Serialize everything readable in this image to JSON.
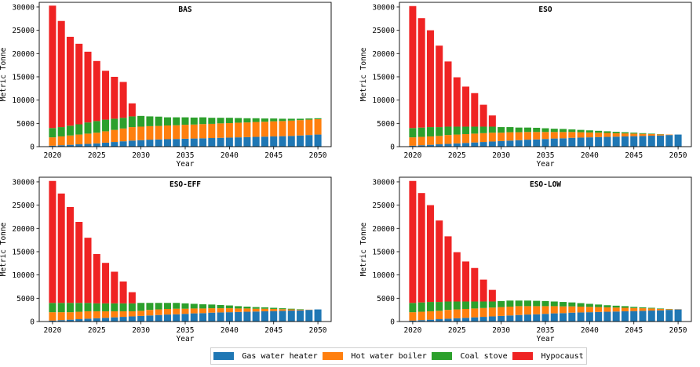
{
  "colors": {
    "gas": "#1f77b4",
    "hot": "#ff7f0e",
    "coal": "#2ca02c",
    "hypo": "#ef2323"
  },
  "chart_data": [
    {
      "type": "bar",
      "stacked": true,
      "title": "BAS",
      "xlabel": "Year",
      "ylabel": "Metric Tonne",
      "ylim": [
        0,
        31000
      ],
      "xticks": [
        2020,
        2025,
        2030,
        2035,
        2040,
        2045,
        2050
      ],
      "yticks": [
        0,
        5000,
        10000,
        15000,
        20000,
        25000,
        30000
      ],
      "x": [
        2020,
        2021,
        2022,
        2023,
        2024,
        2025,
        2026,
        2027,
        2028,
        2029,
        2030,
        2031,
        2032,
        2033,
        2034,
        2035,
        2036,
        2037,
        2038,
        2039,
        2040,
        2041,
        2042,
        2043,
        2044,
        2045,
        2046,
        2047,
        2048,
        2049,
        2050
      ],
      "series": [
        {
          "name": "Gas water heater",
          "values": [
            200,
            300,
            400,
            500,
            600,
            700,
            850,
            1000,
            1150,
            1300,
            1400,
            1500,
            1550,
            1600,
            1650,
            1700,
            1750,
            1800,
            1850,
            1900,
            1950,
            2000,
            2050,
            2100,
            2150,
            2200,
            2250,
            2300,
            2400,
            2500,
            2600
          ]
        },
        {
          "name": "Hot water boiler",
          "values": [
            1800,
            1900,
            2000,
            2100,
            2200,
            2300,
            2450,
            2600,
            2750,
            2900,
            2900,
            2900,
            2900,
            2950,
            2950,
            3000,
            3000,
            3050,
            3050,
            3100,
            3100,
            3150,
            3150,
            3200,
            3200,
            3250,
            3250,
            3300,
            3300,
            3300,
            3300
          ]
        },
        {
          "name": "Coal stove",
          "values": [
            2000,
            2000,
            2100,
            2200,
            2400,
            2500,
            2500,
            2400,
            2300,
            2300,
            2300,
            2100,
            2000,
            1750,
            1700,
            1600,
            1500,
            1450,
            1300,
            1200,
            1150,
            1000,
            900,
            800,
            700,
            600,
            500,
            400,
            300,
            250,
            200
          ]
        },
        {
          "name": "Hypocaust",
          "values": [
            26300,
            22800,
            19100,
            17300,
            15200,
            12900,
            10500,
            9000,
            7700,
            2800,
            0,
            0,
            0,
            0,
            0,
            0,
            0,
            0,
            0,
            0,
            0,
            0,
            0,
            0,
            0,
            0,
            0,
            0,
            0,
            0,
            0
          ]
        }
      ]
    },
    {
      "type": "bar",
      "stacked": true,
      "title": "ESO",
      "xlabel": "Year",
      "ylabel": "Metric Tonne",
      "ylim": [
        0,
        31000
      ],
      "xticks": [
        2020,
        2025,
        2030,
        2035,
        2040,
        2045,
        2050
      ],
      "yticks": [
        0,
        5000,
        10000,
        15000,
        20000,
        25000,
        30000
      ],
      "x": [
        2020,
        2021,
        2022,
        2023,
        2024,
        2025,
        2026,
        2027,
        2028,
        2029,
        2030,
        2031,
        2032,
        2033,
        2034,
        2035,
        2036,
        2037,
        2038,
        2039,
        2040,
        2041,
        2042,
        2043,
        2044,
        2045,
        2046,
        2047,
        2048,
        2049,
        2050
      ],
      "series": [
        {
          "name": "Gas water heater",
          "values": [
            200,
            300,
            400,
            500,
            600,
            700,
            800,
            900,
            1000,
            1100,
            1200,
            1300,
            1400,
            1500,
            1550,
            1650,
            1750,
            1800,
            1900,
            1950,
            2000,
            2050,
            2100,
            2150,
            2200,
            2250,
            2300,
            2350,
            2400,
            2500,
            2600
          ]
        },
        {
          "name": "Hot water boiler",
          "values": [
            1800,
            1800,
            1800,
            1800,
            1900,
            1900,
            1900,
            1900,
            1900,
            1900,
            1800,
            1800,
            1700,
            1650,
            1600,
            1500,
            1400,
            1350,
            1250,
            1150,
            1050,
            950,
            850,
            750,
            650,
            550,
            450,
            350,
            250,
            100,
            0
          ]
        },
        {
          "name": "Coal stove",
          "values": [
            2000,
            2000,
            2000,
            1900,
            1800,
            1700,
            1600,
            1500,
            1400,
            1300,
            1200,
            1100,
            1000,
            950,
            900,
            800,
            700,
            650,
            550,
            500,
            450,
            400,
            350,
            300,
            250,
            200,
            150,
            100,
            50,
            0,
            0
          ]
        },
        {
          "name": "Hypocaust",
          "values": [
            26200,
            23500,
            20800,
            17500,
            14000,
            10600,
            8600,
            7200,
            4700,
            2400,
            0,
            0,
            0,
            0,
            0,
            0,
            0,
            0,
            0,
            0,
            0,
            0,
            0,
            0,
            0,
            0,
            0,
            0,
            0,
            0,
            0
          ]
        }
      ]
    },
    {
      "type": "bar",
      "stacked": true,
      "title": "ESO-EFF",
      "xlabel": "Year",
      "ylabel": "Metric Tonne",
      "ylim": [
        0,
        31000
      ],
      "xticks": [
        2020,
        2025,
        2030,
        2035,
        2040,
        2045,
        2050
      ],
      "yticks": [
        0,
        5000,
        10000,
        15000,
        20000,
        25000,
        30000
      ],
      "x": [
        2020,
        2021,
        2022,
        2023,
        2024,
        2025,
        2026,
        2027,
        2028,
        2029,
        2030,
        2031,
        2032,
        2033,
        2034,
        2035,
        2036,
        2037,
        2038,
        2039,
        2040,
        2041,
        2042,
        2043,
        2044,
        2045,
        2046,
        2047,
        2048,
        2049,
        2050
      ],
      "series": [
        {
          "name": "Gas water heater",
          "values": [
            200,
            300,
            400,
            500,
            600,
            700,
            800,
            900,
            1000,
            1100,
            1200,
            1300,
            1400,
            1500,
            1550,
            1650,
            1750,
            1800,
            1900,
            1950,
            2000,
            2050,
            2100,
            2150,
            2200,
            2250,
            2300,
            2350,
            2400,
            2500,
            2600
          ]
        },
        {
          "name": "Hot water boiler",
          "values": [
            1800,
            1700,
            1600,
            1600,
            1600,
            1500,
            1400,
            1300,
            1200,
            1100,
            1100,
            1200,
            1200,
            1200,
            1200,
            1100,
            1050,
            1000,
            950,
            900,
            850,
            750,
            700,
            600,
            550,
            450,
            350,
            250,
            150,
            50,
            0
          ]
        },
        {
          "name": "Coal stove",
          "values": [
            2000,
            2000,
            2000,
            1900,
            1800,
            1700,
            1700,
            1700,
            1700,
            1700,
            1700,
            1500,
            1400,
            1300,
            1250,
            1150,
            1000,
            900,
            800,
            700,
            600,
            500,
            400,
            350,
            300,
            250,
            200,
            150,
            100,
            0,
            0
          ]
        },
        {
          "name": "Hypocaust",
          "values": [
            26200,
            23500,
            20600,
            17400,
            14000,
            10600,
            8700,
            6800,
            4700,
            2400,
            0,
            0,
            0,
            0,
            0,
            0,
            0,
            0,
            0,
            0,
            0,
            0,
            0,
            0,
            0,
            0,
            0,
            0,
            0,
            0,
            0
          ]
        }
      ]
    },
    {
      "type": "bar",
      "stacked": true,
      "title": "ESO-LOW",
      "xlabel": "Year",
      "ylabel": "Metric Tonne",
      "ylim": [
        0,
        31000
      ],
      "xticks": [
        2020,
        2025,
        2030,
        2035,
        2040,
        2045,
        2050
      ],
      "yticks": [
        0,
        5000,
        10000,
        15000,
        20000,
        25000,
        30000
      ],
      "x": [
        2020,
        2021,
        2022,
        2023,
        2024,
        2025,
        2026,
        2027,
        2028,
        2029,
        2030,
        2031,
        2032,
        2033,
        2034,
        2035,
        2036,
        2037,
        2038,
        2039,
        2040,
        2041,
        2042,
        2043,
        2044,
        2045,
        2046,
        2047,
        2048,
        2049,
        2050
      ],
      "series": [
        {
          "name": "Gas water heater",
          "values": [
            200,
            300,
            400,
            500,
            600,
            700,
            800,
            900,
            1000,
            1100,
            1200,
            1300,
            1400,
            1500,
            1550,
            1650,
            1750,
            1800,
            1900,
            1950,
            2000,
            2050,
            2100,
            2150,
            2200,
            2250,
            2300,
            2350,
            2400,
            2500,
            2600
          ]
        },
        {
          "name": "Hot water boiler",
          "values": [
            1800,
            1800,
            1800,
            1800,
            1900,
            1900,
            1900,
            1900,
            1900,
            1900,
            1900,
            1900,
            1900,
            1800,
            1750,
            1650,
            1550,
            1450,
            1350,
            1250,
            1150,
            1050,
            950,
            850,
            750,
            650,
            550,
            450,
            300,
            150,
            50
          ]
        },
        {
          "name": "Coal stove",
          "values": [
            2000,
            2000,
            2000,
            1900,
            1800,
            1700,
            1600,
            1500,
            1400,
            1300,
            1300,
            1300,
            1200,
            1200,
            1150,
            1100,
            1000,
            950,
            850,
            750,
            650,
            550,
            450,
            400,
            350,
            250,
            200,
            150,
            100,
            50,
            0
          ]
        },
        {
          "name": "Hypocaust",
          "values": [
            26200,
            23500,
            20800,
            17500,
            14000,
            10600,
            8600,
            7200,
            4700,
            2500,
            0,
            0,
            0,
            0,
            0,
            0,
            0,
            0,
            0,
            0,
            0,
            0,
            0,
            0,
            0,
            0,
            0,
            0,
            0,
            0,
            0
          ]
        }
      ]
    }
  ]
}
